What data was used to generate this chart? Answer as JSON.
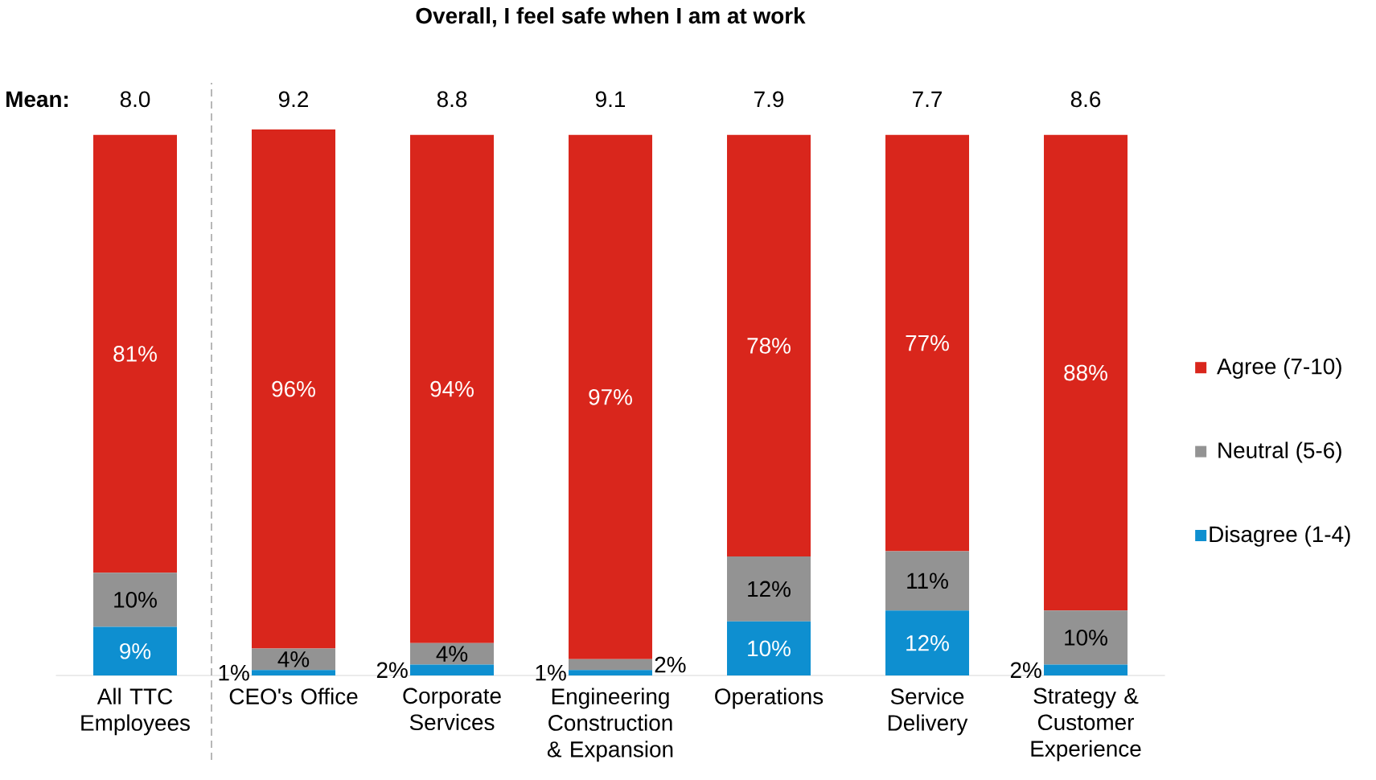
{
  "chart_data": {
    "type": "bar",
    "stacked": true,
    "title": "Overall, I feel safe when I am at work",
    "categories": [
      "All TTC Employees",
      "CEO's Office",
      "Corporate Services",
      "Engineering Construction & Expansion",
      "Operations",
      "Service Delivery",
      "Strategy & Customer Experience"
    ],
    "series": [
      {
        "name": "Disagree (1-4)",
        "color": "#0e8fd0",
        "values": [
          9,
          1,
          2,
          1,
          10,
          12,
          2
        ],
        "value_labels": [
          "9%",
          "1%",
          "2%",
          "1%",
          "10%",
          "12%",
          "2%"
        ]
      },
      {
        "name": "Neutral (5-6)",
        "color": "#939393",
        "values": [
          10,
          4,
          4,
          2,
          12,
          11,
          10
        ],
        "value_labels": [
          "10%",
          "4%",
          "4%",
          "2%",
          "12%",
          "11%",
          "10%"
        ]
      },
      {
        "name": "Agree (7-10)",
        "color": "#d9261c",
        "values": [
          81,
          96,
          94,
          97,
          78,
          77,
          88
        ],
        "value_labels": [
          "81%",
          "96%",
          "94%",
          "97%",
          "78%",
          "77%",
          "88%"
        ]
      }
    ],
    "annotations": [
      "Mean:",
      "8.0",
      "9.2",
      "8.8",
      "9.1",
      "7.9",
      "7.7",
      "8.6"
    ],
    "legend": "right"
  }
}
